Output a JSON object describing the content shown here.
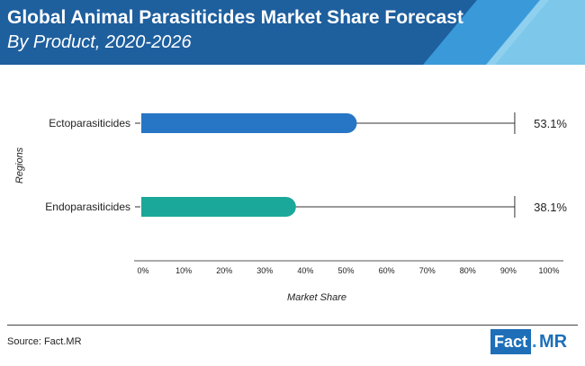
{
  "header": {
    "title": "Global Animal Parasiticides Market Share Forecast",
    "subtitle": "By Product, 2020-2026"
  },
  "chart_data": {
    "type": "bar",
    "orientation": "horizontal",
    "categories": [
      "Ectoparasiticides",
      "Endoparasiticides"
    ],
    "values": [
      53.1,
      38.1
    ],
    "value_labels": [
      "53.1%",
      "38.1%"
    ],
    "bar_colors": [
      "#2776c6",
      "#1aa89a"
    ],
    "xlabel": "Market Share",
    "ylabel": "Regions",
    "xlim": [
      0,
      100
    ],
    "x_ticks": [
      0,
      10,
      20,
      30,
      40,
      50,
      60,
      70,
      80,
      90,
      100
    ],
    "x_tick_labels": [
      "0%",
      "10%",
      "20%",
      "30%",
      "40%",
      "50%",
      "60%",
      "70%",
      "80%",
      "90%",
      "100%"
    ],
    "grid": false
  },
  "footer": {
    "source": "Source: Fact.MR",
    "logo_fact": "Fact",
    "logo_mr": "MR"
  },
  "colors": {
    "banner_dark": "#1e5f9e",
    "banner_mid": "#3a9ad9",
    "banner_light": "#8fd0ee"
  }
}
